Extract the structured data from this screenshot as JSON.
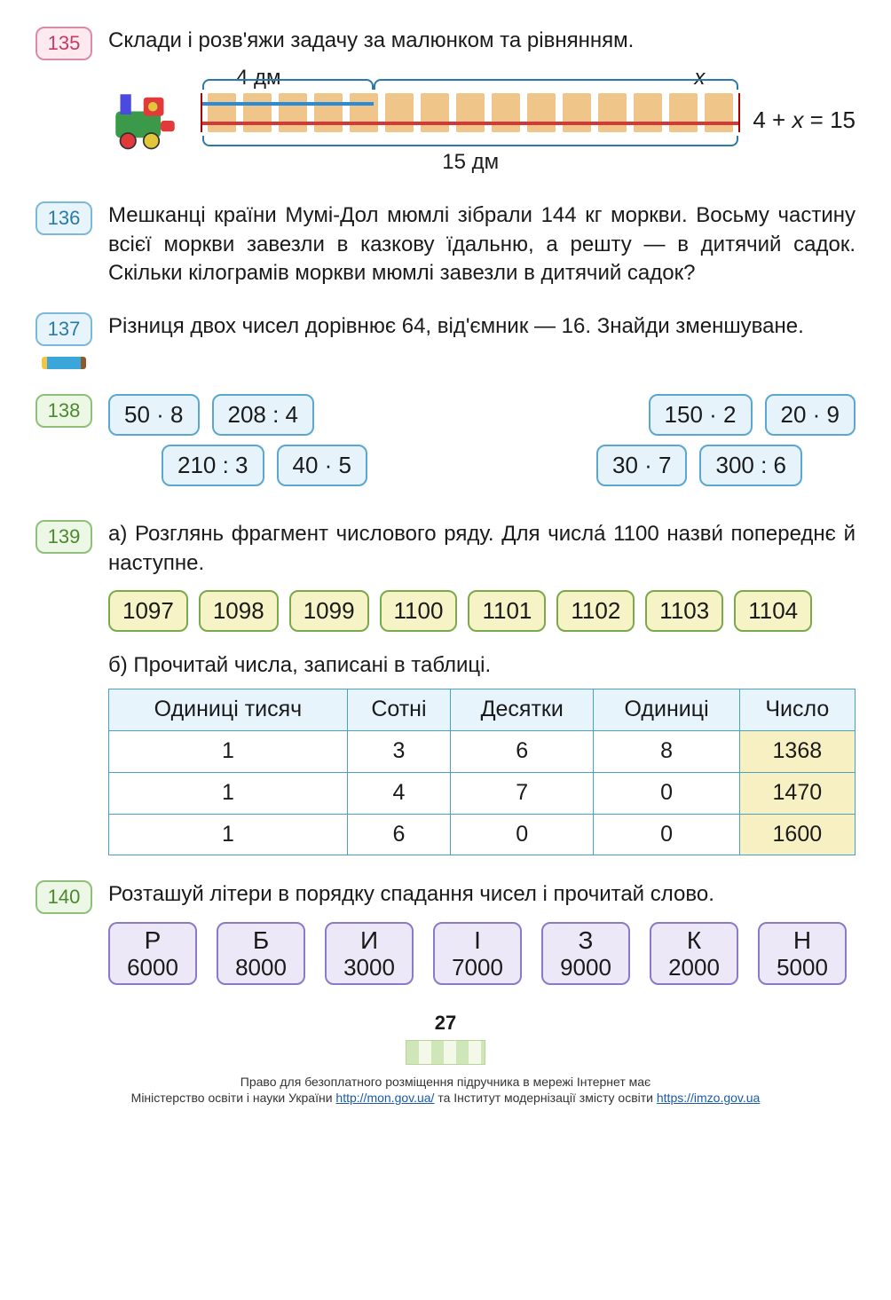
{
  "page_number": "27",
  "colors": {
    "pink_border": "#d98ca3",
    "blue_border": "#7bb8d9",
    "green_border": "#8fbf7a",
    "purple_border": "#8a7ac7",
    "table_border": "#4aa0c2",
    "chip_blue_bg": "#e6f3fb",
    "chip_yellow_bg": "#f6f3c7",
    "chip_purple_bg": "#ece8f7"
  },
  "ex135": {
    "num": "135",
    "text": "Склади і розв'яжи задачу за малюнком та рівнянням.",
    "top_left_label": "4 дм",
    "top_right_label": "x",
    "bottom_label": "15 дм",
    "equation": "4 + x = 15"
  },
  "ex136": {
    "num": "136",
    "text": "Мешканці країни Мумі-Дол мюмлі зібрали 144 кг моркви. Восьму частину всієї моркви завезли в казкову їдальню, а решту — в дитячий садок. Скільки кілограмів моркви мюмлі завезли в дитячий садок?"
  },
  "ex137": {
    "num": "137",
    "text": "Різниця двох чисел дорівнює 64, від'ємник — 16. Знайди зменшуване."
  },
  "ex138": {
    "num": "138",
    "row1_left": [
      "50 · 8",
      "208 : 4"
    ],
    "row1_right": [
      "150 · 2",
      "20 · 9"
    ],
    "row2_left": [
      "210 : 3",
      "40 · 5"
    ],
    "row2_right": [
      "30 · 7",
      "300 : 6"
    ]
  },
  "ex139": {
    "num": "139",
    "part_a": "а) Розглянь фрагмент числового ряду. Для числа́ 1100 назви́ попереднє й наступне.",
    "sequence": [
      "1097",
      "1098",
      "1099",
      "1100",
      "1101",
      "1102",
      "1103",
      "1104"
    ],
    "part_b": "б) Прочитай числа, записані в таблиці.",
    "table": {
      "headers": [
        "Одиниці тисяч",
        "Сотні",
        "Десятки",
        "Одиниці",
        "Число"
      ],
      "rows": [
        [
          "1",
          "3",
          "6",
          "8",
          "1368"
        ],
        [
          "1",
          "4",
          "7",
          "0",
          "1470"
        ],
        [
          "1",
          "6",
          "0",
          "0",
          "1600"
        ]
      ]
    }
  },
  "ex140": {
    "num": "140",
    "text": "Розташуй літери в порядку спадання чисел і прочитай слово.",
    "items": [
      {
        "letter": "Р",
        "value": "6000"
      },
      {
        "letter": "Б",
        "value": "8000"
      },
      {
        "letter": "И",
        "value": "3000"
      },
      {
        "letter": "І",
        "value": "7000"
      },
      {
        "letter": "З",
        "value": "9000"
      },
      {
        "letter": "К",
        "value": "2000"
      },
      {
        "letter": "Н",
        "value": "5000"
      }
    ]
  },
  "footer": {
    "line1": "Право для безоплатного розміщення підручника в мережі Інтернет має",
    "line2_a": "Міністерство освіти і науки України ",
    "url1": "http://mon.gov.ua/",
    "line2_b": " та Інститут модернізації змісту освіти ",
    "url2": "https://imzo.gov.ua"
  }
}
